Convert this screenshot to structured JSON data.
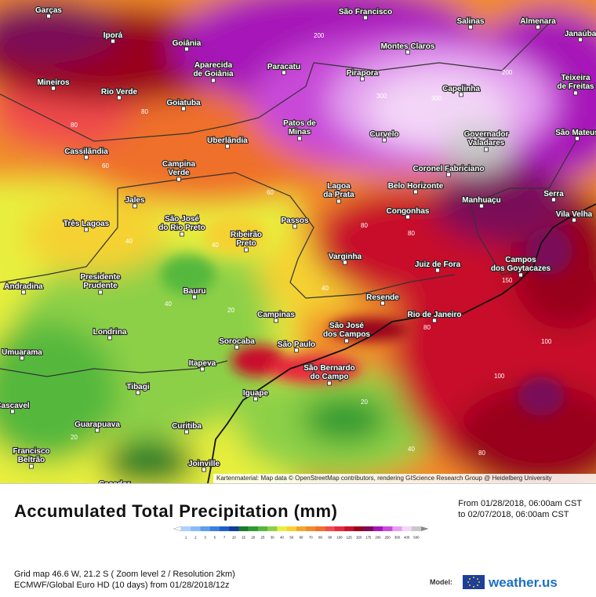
{
  "map": {
    "attribution": "Kartenmaterial: Map data © OpenStreetMap contributors, rendering GIScience Research Group @ Heidelberg University",
    "cities": [
      "Garças",
      "São Francisco",
      "Salinas",
      "Almenara",
      "Goiânia",
      "Iporá",
      "Aparecida de Goiânia",
      "Montes Claros",
      "Paracatu",
      "Janaúba",
      "Pirapora",
      "Teixeira de Freitas",
      "Mineiros",
      "Rio Verde",
      "Goiatuba",
      "Capelinha",
      "Patos de Minas",
      "Curvelo",
      "Governador Valadares",
      "São Mateus",
      "Uberlândia",
      "Cassilândia",
      "Campina Verde",
      "Coronel Fabriciano",
      "Lagoa da Prata",
      "Belo Horizonte",
      "Serra",
      "Manhuaçu",
      "Vila Velha",
      "Jales",
      "São José do Rio Preto",
      "Três Lagoas",
      "Passos",
      "Congonhas",
      "Ribeirão Preto",
      "Varginha",
      "Juiz de Fora",
      "Campos dos Goytacazes",
      "Presidente Prudente",
      "Andradina",
      "Bauru",
      "Resende",
      "Campinas",
      "São José dos Campos",
      "Rio de Janeiro",
      "Londrina",
      "Sorocaba",
      "São Paulo",
      "Umuarama",
      "Itapeva",
      "São Bernardo do Campo",
      "Tibagi",
      "Iguape",
      "Cascavel",
      "Guarapuava",
      "Curitiba",
      "Francisco Beltrão",
      "Joinville",
      "Caçador"
    ]
  },
  "title": "Accumulated Total Precipitation (mm)",
  "date_from": "From 01/28/2018, 06:00am CST",
  "date_to": "to 02/07/2018, 06:00am CST",
  "legend": {
    "labels": [
      "1",
      "2",
      "3",
      "5",
      "7",
      "10",
      "15",
      "20",
      "25",
      "30",
      "40",
      "50",
      "60",
      "70",
      "80",
      "90",
      "100",
      "125",
      "150",
      "175",
      "200",
      "250",
      "300",
      "400",
      "500"
    ],
    "colors": [
      "#a9d2ff",
      "#88bbf5",
      "#5e9cec",
      "#3a7fe0",
      "#1f5ec8",
      "#113b9e",
      "#1c7a2a",
      "#2e9a33",
      "#55b83c",
      "#8cd046",
      "#e8ef3c",
      "#f5d231",
      "#f2a72a",
      "#f08a2a",
      "#ef6f2c",
      "#f04c4c",
      "#e8283d",
      "#c8102a",
      "#98001c",
      "#7a0a58",
      "#a615b8",
      "#c84ad8",
      "#e3a0ef",
      "#f3d6f7",
      "#c8c8c8"
    ]
  },
  "grid_text": "Grid map 46.6 W, 21.2 S ( Zoom level 2 / Resolution 2km)",
  "model_text": "ECMWF/Global Euro HD (10 days) from 01/28/2018/12z",
  "model_label": "Model:",
  "brand": "weather.us"
}
